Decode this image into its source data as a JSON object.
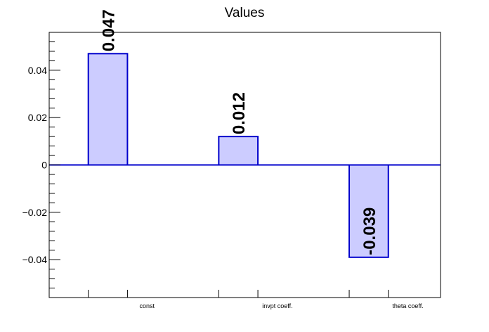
{
  "chart_data": {
    "type": "bar",
    "title": "Values",
    "categories": [
      "const",
      "invpt coeff.",
      "theta coeff."
    ],
    "values": [
      0.047,
      0.012,
      -0.039
    ],
    "data_labels": [
      "0.047",
      "0.012",
      "-0.039"
    ],
    "ylim": [
      -0.056,
      0.056
    ],
    "yticks": [
      -0.04,
      -0.02,
      0,
      0.02,
      0.04
    ],
    "ytick_labels": [
      "−0.04",
      "−0.02",
      "0",
      "0.02",
      "0.04"
    ],
    "grid": false,
    "bar_fill": "#ccccff",
    "bar_stroke": "#0000cc",
    "zero_line_color": "#0000cc"
  }
}
